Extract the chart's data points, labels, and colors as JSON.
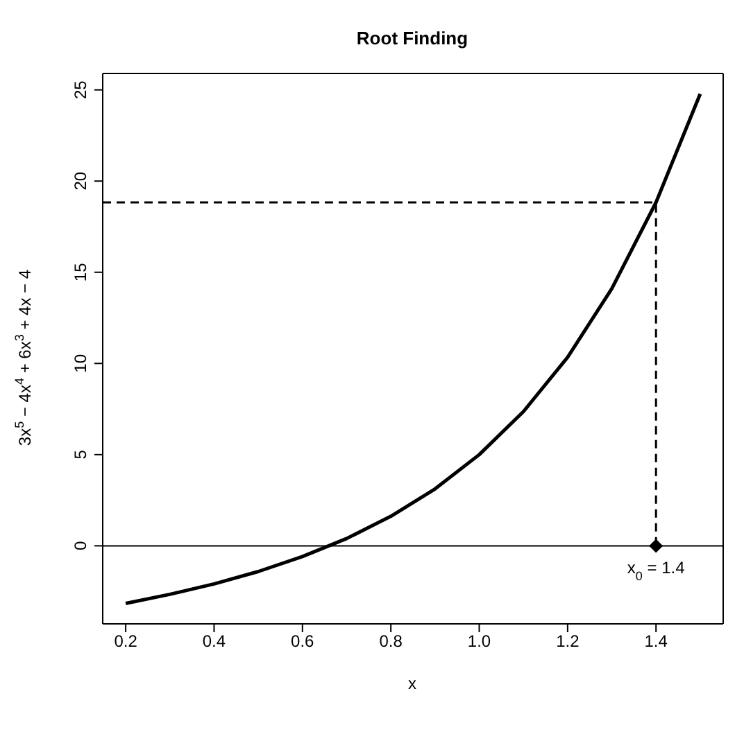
{
  "chart_data": {
    "type": "line",
    "title": "Root Finding",
    "xlabel": "x",
    "ylabel": "3x$^{5}$ − 4x$^{4}$ + 6x$^{3}$ + 4x − 4",
    "xlim": [
      0.148,
      1.552
    ],
    "ylim": [
      -4.28,
      25.9
    ],
    "xticks": [
      0.2,
      0.4,
      0.6,
      0.8,
      {
        "value": 1,
        "label": "1.0"
      },
      1.2,
      1.4
    ],
    "yticks": [
      0,
      5,
      10,
      15,
      20,
      25
    ],
    "series": [
      {
        "color": "#000000",
        "line_style": "solid",
        "marker": "none",
        "x": [
          0.2,
          0.3,
          0.4,
          0.5,
          0.6,
          0.7,
          0.8,
          0.9,
          1.0,
          1.1,
          1.2,
          1.3,
          1.4,
          1.5
        ],
        "values": [
          -3.16,
          -2.66,
          -2.09,
          -1.41,
          -0.59,
          0.4,
          1.62,
          3.12,
          5.0,
          7.36,
          10.34,
          14.1,
          18.83,
          24.78
        ]
      }
    ],
    "ref_lines": [
      {
        "axis": "y",
        "value": 0,
        "color": "#000000",
        "line_style": "solid"
      }
    ],
    "annotations": [
      {
        "text": "x$_{0}$ = 1.4",
        "x": 1.4,
        "y": 0
      }
    ]
  }
}
